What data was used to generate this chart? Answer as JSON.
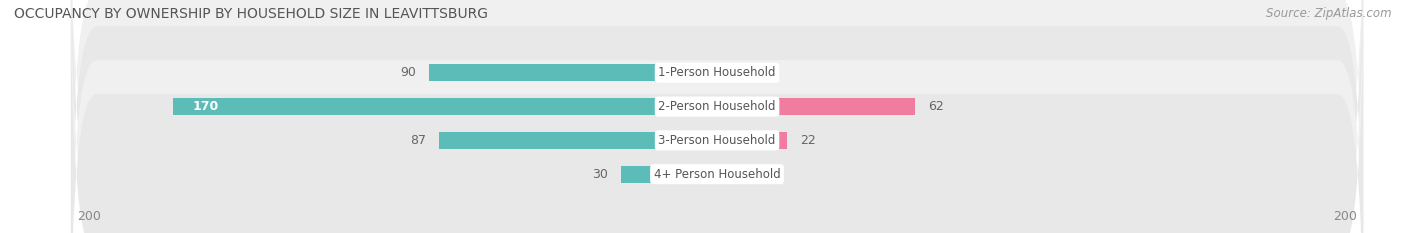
{
  "title": "OCCUPANCY BY OWNERSHIP BY HOUSEHOLD SIZE IN LEAVITTSBURG",
  "source": "Source: ZipAtlas.com",
  "categories": [
    "1-Person Household",
    "2-Person Household",
    "3-Person Household",
    "4+ Person Household"
  ],
  "owner_values": [
    90,
    170,
    87,
    30
  ],
  "renter_values": [
    0,
    62,
    22,
    9
  ],
  "owner_color": "#5bbcb8",
  "renter_color": "#f07ca0",
  "row_bg_even": "#f0f0f0",
  "row_bg_odd": "#e8e8e8",
  "axis_max": 200,
  "title_fontsize": 10,
  "source_fontsize": 8.5,
  "tick_fontsize": 9,
  "bar_label_fontsize": 9,
  "cat_label_fontsize": 8.5,
  "legend_fontsize": 9
}
